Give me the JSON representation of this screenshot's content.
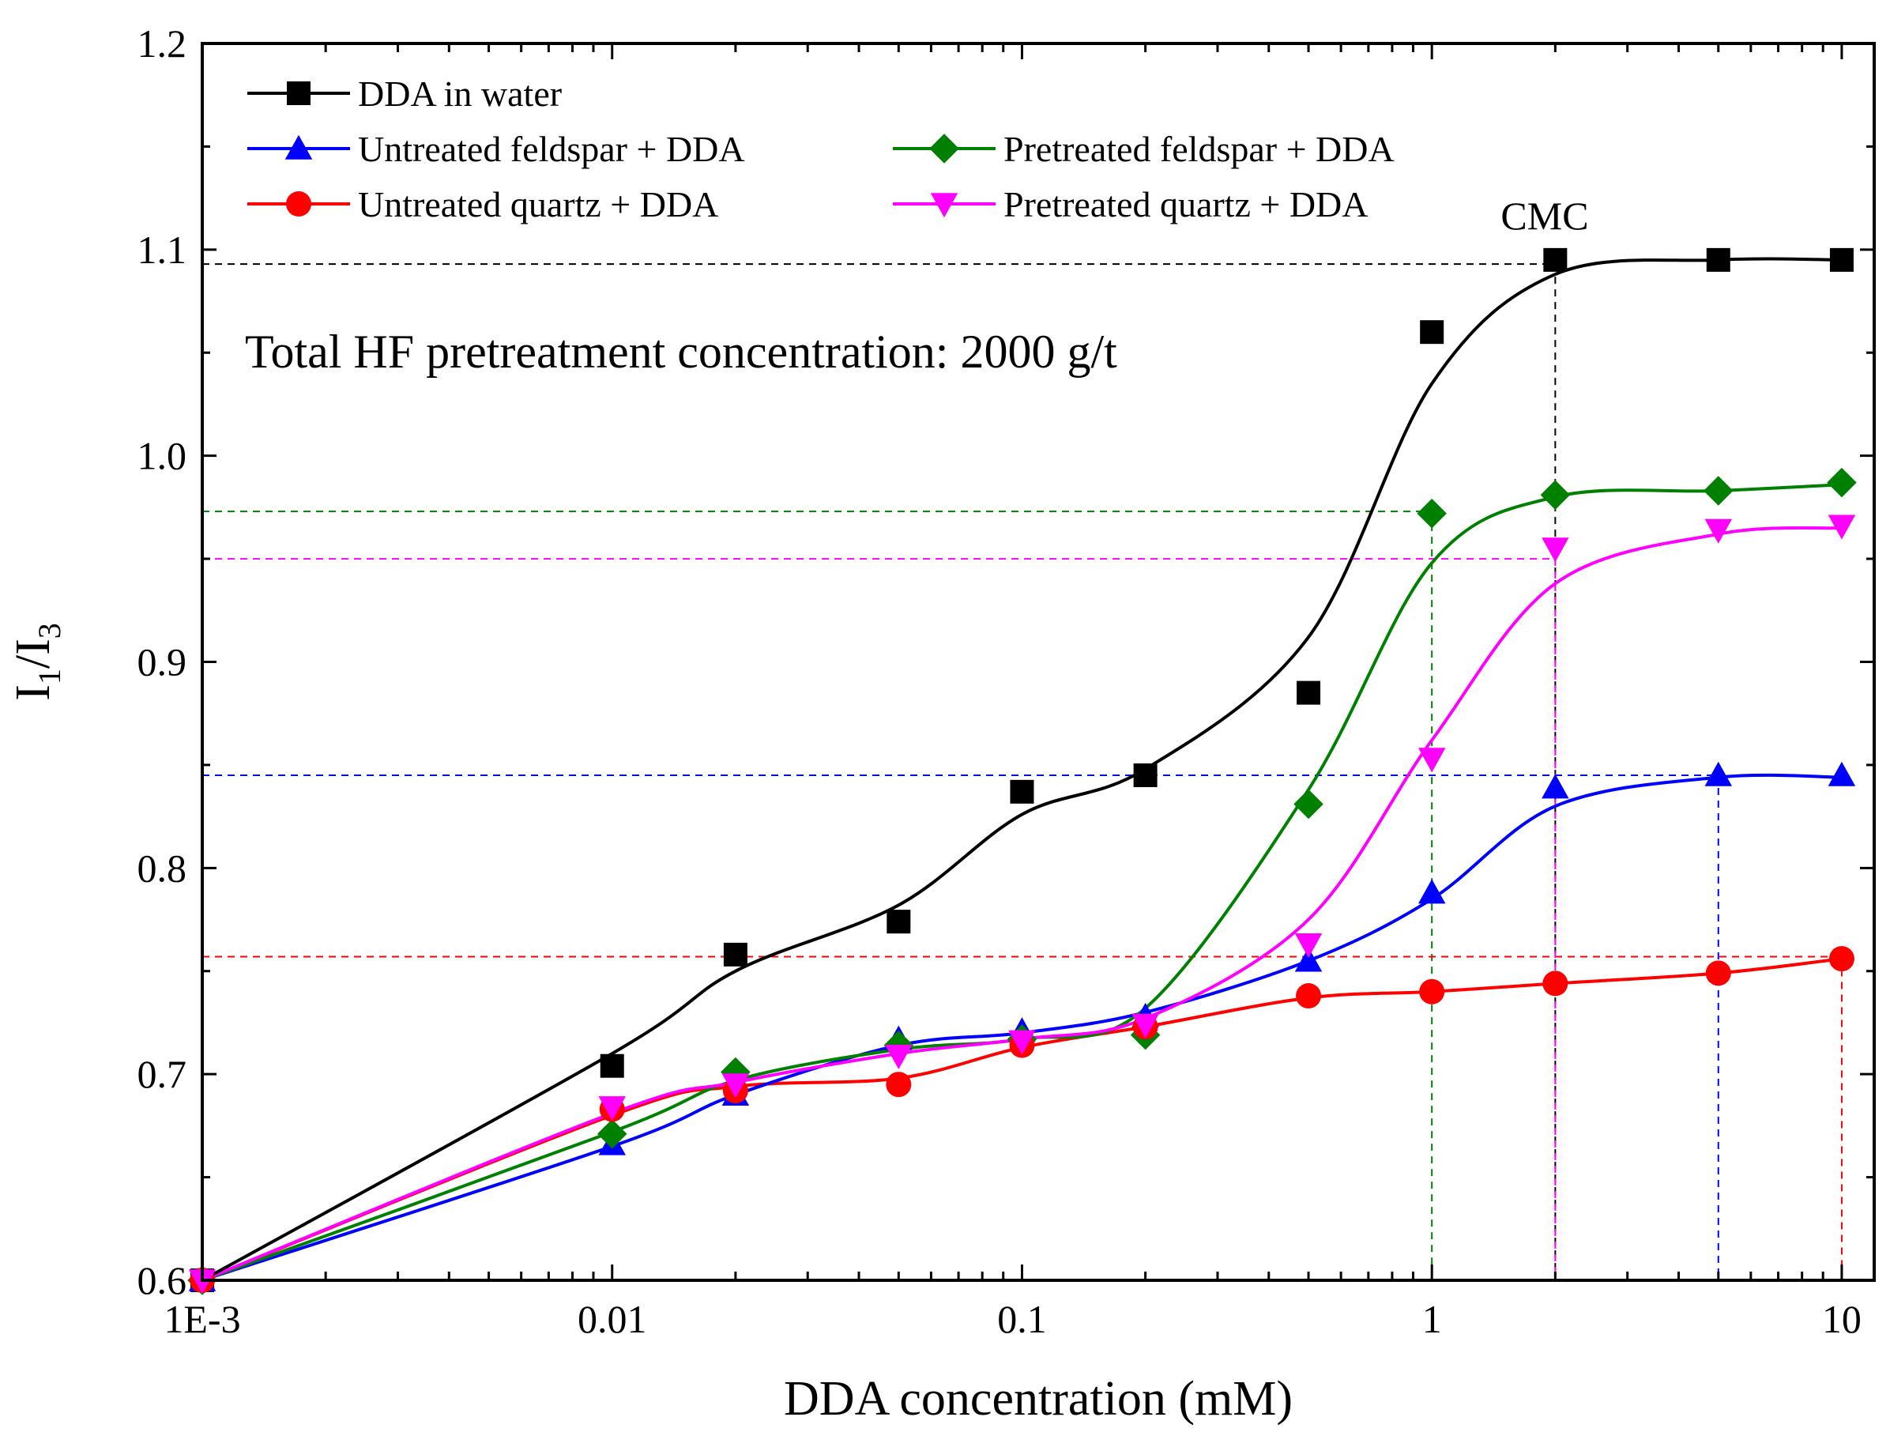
{
  "chart_data": {
    "type": "line",
    "xscale": "log",
    "title": "",
    "xlabel": "DDA concentration (mM)",
    "ylabel_main": "I",
    "ylabel_sub1": "1",
    "ylabel_slash": "/I",
    "ylabel_sub2": "3",
    "xlim": [
      0.001,
      12
    ],
    "ylim": [
      0.6,
      1.2
    ],
    "x_ticks": [
      {
        "value": 0.001,
        "label": "1E-3"
      },
      {
        "value": 0.01,
        "label": "0.01"
      },
      {
        "value": 0.1,
        "label": "0.1"
      },
      {
        "value": 1,
        "label": "1"
      },
      {
        "value": 10,
        "label": "10"
      }
    ],
    "y_ticks": [
      {
        "value": 0.6,
        "label": "0.6"
      },
      {
        "value": 0.7,
        "label": "0.7"
      },
      {
        "value": 0.8,
        "label": "0.8"
      },
      {
        "value": 0.9,
        "label": "0.9"
      },
      {
        "value": 1.0,
        "label": "1.0"
      },
      {
        "value": 1.1,
        "label": "1.1"
      },
      {
        "value": 1.2,
        "label": "1.2"
      }
    ],
    "annotation": "Total HF pretreatment concentration: 2000 g/t",
    "cmc_label": "CMC",
    "series": [
      {
        "name": "DDA in water",
        "color": "#000000",
        "marker": "square",
        "x": [
          0.001,
          0.01,
          0.02,
          0.05,
          0.1,
          0.2,
          0.5,
          1,
          2,
          5,
          10
        ],
        "y": [
          0.6,
          0.704,
          0.758,
          0.774,
          0.837,
          0.845,
          0.885,
          1.06,
          1.095,
          1.095,
          1.095
        ],
        "fit_y": [
          0.6,
          0.71,
          0.75,
          0.782,
          0.826,
          0.848,
          0.912,
          1.035,
          1.088,
          1.095,
          1.095
        ],
        "cmc_y": 1.093,
        "cmc_x": 2
      },
      {
        "name": "Untreated feldspar + DDA",
        "color": "#0000ff",
        "marker": "triangle-up",
        "x": [
          0.001,
          0.01,
          0.02,
          0.05,
          0.1,
          0.2,
          0.5,
          1,
          2,
          5,
          10
        ],
        "y": [
          0.6,
          0.666,
          0.69,
          0.717,
          0.721,
          0.728,
          0.755,
          0.788,
          0.839,
          0.845,
          0.845
        ],
        "fit_y": [
          0.6,
          0.665,
          0.69,
          0.714,
          0.72,
          0.73,
          0.755,
          0.785,
          0.83,
          0.844,
          0.844
        ],
        "cmc_y": 0.845,
        "cmc_x": 5
      },
      {
        "name": "Pretreated feldspar + DDA",
        "color": "#008000",
        "marker": "diamond",
        "x": [
          0.001,
          0.01,
          0.02,
          0.05,
          0.1,
          0.2,
          0.5,
          1,
          2,
          5,
          10
        ],
        "y": [
          0.6,
          0.671,
          0.701,
          0.714,
          0.717,
          0.719,
          0.831,
          0.972,
          0.981,
          0.983,
          0.987
        ],
        "fit_y": [
          0.6,
          0.672,
          0.697,
          0.712,
          0.717,
          0.732,
          0.838,
          0.948,
          0.98,
          0.983,
          0.986
        ],
        "cmc_y": 0.973,
        "cmc_x": 1
      },
      {
        "name": "Untreated quartz + DDA",
        "color": "#ff0000",
        "marker": "circle",
        "x": [
          0.001,
          0.01,
          0.02,
          0.05,
          0.1,
          0.2,
          0.5,
          1,
          2,
          5,
          10
        ],
        "y": [
          0.6,
          0.683,
          0.692,
          0.695,
          0.714,
          0.723,
          0.738,
          0.74,
          0.744,
          0.749,
          0.756
        ],
        "fit_y": [
          0.6,
          0.68,
          0.694,
          0.698,
          0.713,
          0.723,
          0.737,
          0.74,
          0.744,
          0.749,
          0.756
        ],
        "cmc_y": 0.757,
        "cmc_x": 10
      },
      {
        "name": "Pretreated quartz + DDA",
        "color": "#ff00ff",
        "marker": "triangle-down",
        "x": [
          0.001,
          0.01,
          0.02,
          0.05,
          0.1,
          0.2,
          0.5,
          1,
          2,
          5,
          10
        ],
        "y": [
          0.6,
          0.684,
          0.695,
          0.709,
          0.716,
          0.724,
          0.763,
          0.853,
          0.955,
          0.964,
          0.966
        ],
        "fit_y": [
          0.6,
          0.681,
          0.696,
          0.71,
          0.717,
          0.727,
          0.775,
          0.862,
          0.938,
          0.962,
          0.965
        ],
        "cmc_y": 0.95,
        "cmc_x": 2
      }
    ],
    "legend_order": [
      0,
      1,
      2,
      3,
      4
    ],
    "legend_position": "top-left"
  }
}
